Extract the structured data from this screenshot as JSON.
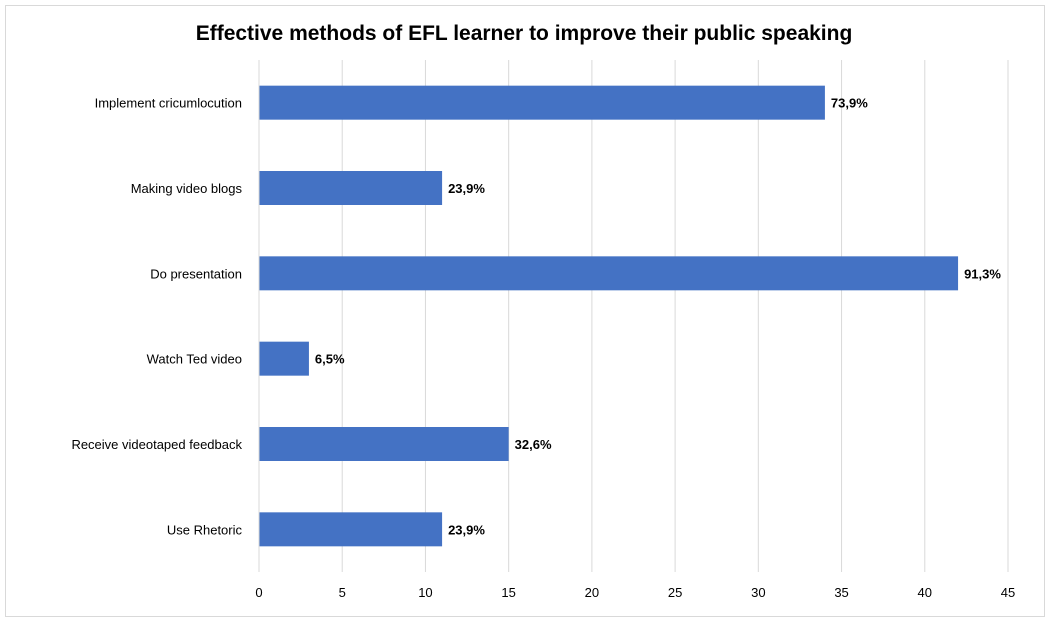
{
  "chart_data": {
    "type": "bar",
    "orientation": "horizontal",
    "title": "Effective methods of EFL learner to improve their public speaking",
    "xlabel": "",
    "ylabel": "",
    "categories": [
      "Implement cricumlocution",
      "Making video blogs",
      "Do presentation",
      "Watch Ted video",
      "Receive videotaped feedback",
      "Use Rhetoric"
    ],
    "values": [
      34,
      11,
      42,
      3,
      15,
      11
    ],
    "data_labels": [
      "73,9%",
      "23,9%",
      "91,3%",
      "6,5%",
      "32,6%",
      "23,9%"
    ],
    "xlim": [
      0,
      45
    ],
    "xticks": [
      "0",
      "5",
      "10",
      "15",
      "20",
      "25",
      "30",
      "35",
      "40",
      "45"
    ],
    "grid": "vertical",
    "legend": "none",
    "bar_color": "#4472c4"
  }
}
